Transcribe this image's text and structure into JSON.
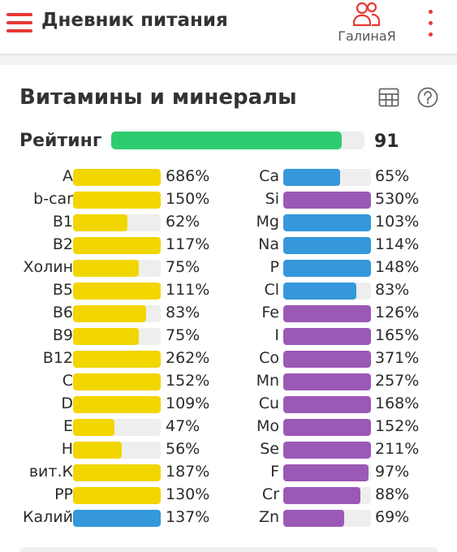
{
  "header": {
    "title": "Дневник питания",
    "profile_name": "ГалинаЯ"
  },
  "section": {
    "title": "Витамины и минералы"
  },
  "rating": {
    "label": "Рейтинг",
    "value": "91",
    "fraction": 0.91
  },
  "colors": {
    "accent": "#e53935",
    "vitamin": "#f2d600",
    "mineral_blue": "#3498db",
    "mineral_purple": "#9b59b6",
    "rating": "#2ecc71",
    "track": "#eeeeee"
  },
  "vitamins": [
    {
      "name": "A",
      "pct": "686%",
      "value": 686,
      "color": "#f2d600"
    },
    {
      "name": "b-car",
      "pct": "150%",
      "value": 150,
      "color": "#f2d600"
    },
    {
      "name": "B1",
      "pct": "62%",
      "value": 62,
      "color": "#f2d600"
    },
    {
      "name": "B2",
      "pct": "117%",
      "value": 117,
      "color": "#f2d600"
    },
    {
      "name": "Холин",
      "pct": "75%",
      "value": 75,
      "color": "#f2d600"
    },
    {
      "name": "B5",
      "pct": "111%",
      "value": 111,
      "color": "#f2d600"
    },
    {
      "name": "B6",
      "pct": "83%",
      "value": 83,
      "color": "#f2d600"
    },
    {
      "name": "B9",
      "pct": "75%",
      "value": 75,
      "color": "#f2d600"
    },
    {
      "name": "B12",
      "pct": "262%",
      "value": 262,
      "color": "#f2d600"
    },
    {
      "name": "C",
      "pct": "152%",
      "value": 152,
      "color": "#f2d600"
    },
    {
      "name": "D",
      "pct": "109%",
      "value": 109,
      "color": "#f2d600"
    },
    {
      "name": "E",
      "pct": "47%",
      "value": 47,
      "color": "#f2d600"
    },
    {
      "name": "H",
      "pct": "56%",
      "value": 56,
      "color": "#f2d600"
    },
    {
      "name": "вит.К",
      "pct": "187%",
      "value": 187,
      "color": "#f2d600"
    },
    {
      "name": "PP",
      "pct": "130%",
      "value": 130,
      "color": "#f2d600"
    },
    {
      "name": "Калий",
      "pct": "137%",
      "value": 137,
      "color": "#3498db"
    }
  ],
  "minerals": [
    {
      "name": "Ca",
      "pct": "65%",
      "value": 65,
      "color": "#3498db"
    },
    {
      "name": "Si",
      "pct": "530%",
      "value": 530,
      "color": "#9b59b6"
    },
    {
      "name": "Mg",
      "pct": "103%",
      "value": 103,
      "color": "#3498db"
    },
    {
      "name": "Na",
      "pct": "114%",
      "value": 114,
      "color": "#3498db"
    },
    {
      "name": "P",
      "pct": "148%",
      "value": 148,
      "color": "#3498db"
    },
    {
      "name": "Cl",
      "pct": "83%",
      "value": 83,
      "color": "#3498db"
    },
    {
      "name": "Fe",
      "pct": "126%",
      "value": 126,
      "color": "#9b59b6"
    },
    {
      "name": "I",
      "pct": "165%",
      "value": 165,
      "color": "#9b59b6"
    },
    {
      "name": "Co",
      "pct": "371%",
      "value": 371,
      "color": "#9b59b6"
    },
    {
      "name": "Mn",
      "pct": "257%",
      "value": 257,
      "color": "#9b59b6"
    },
    {
      "name": "Cu",
      "pct": "168%",
      "value": 168,
      "color": "#9b59b6"
    },
    {
      "name": "Mo",
      "pct": "152%",
      "value": 152,
      "color": "#9b59b6"
    },
    {
      "name": "Se",
      "pct": "211%",
      "value": 211,
      "color": "#9b59b6"
    },
    {
      "name": "F",
      "pct": "97%",
      "value": 97,
      "color": "#9b59b6"
    },
    {
      "name": "Cr",
      "pct": "88%",
      "value": 88,
      "color": "#9b59b6"
    },
    {
      "name": "Zn",
      "pct": "69%",
      "value": 69,
      "color": "#9b59b6"
    }
  ]
}
